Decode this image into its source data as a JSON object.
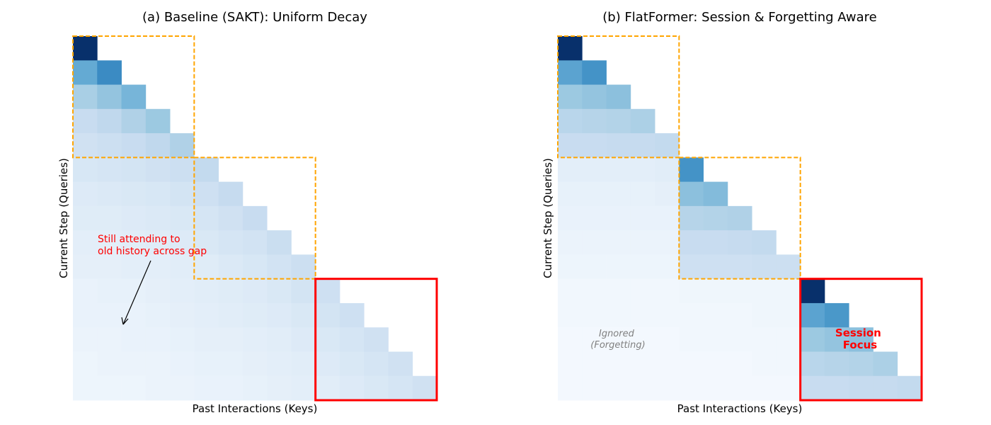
{
  "chart_data": [
    {
      "type": "heatmap",
      "title": "(a) Baseline (SAKT): Uniform Decay",
      "xlabel": "Past Interactions (Keys)",
      "ylabel": "Current Step (Queries)",
      "colormap": "Blues",
      "mask": "causal (upper triangle blank)",
      "grid": false,
      "session_boxes": [
        {
          "start": 0,
          "end": 5,
          "color": "#ffa500",
          "style": "dashed"
        },
        {
          "start": 5,
          "end": 10,
          "color": "#ffa500",
          "style": "dashed"
        },
        {
          "start": 10,
          "end": 15,
          "color": "#ff0000",
          "style": "solid"
        }
      ],
      "annotations": [
        {
          "text": "Still attending to\nold history across gap",
          "color": "#ff0000",
          "arrow": true
        }
      ],
      "values": [
        [
          1.0
        ],
        [
          0.52,
          0.65
        ],
        [
          0.34,
          0.4,
          0.47
        ],
        [
          0.24,
          0.27,
          0.32,
          0.38
        ],
        [
          0.2,
          0.22,
          0.24,
          0.27,
          0.32
        ],
        [
          0.16,
          0.17,
          0.18,
          0.2,
          0.22,
          0.26
        ],
        [
          0.13,
          0.14,
          0.15,
          0.16,
          0.18,
          0.21,
          0.25
        ],
        [
          0.12,
          0.12,
          0.13,
          0.14,
          0.15,
          0.17,
          0.2,
          0.24
        ],
        [
          0.1,
          0.1,
          0.11,
          0.12,
          0.13,
          0.15,
          0.17,
          0.19,
          0.23
        ],
        [
          0.09,
          0.09,
          0.1,
          0.1,
          0.11,
          0.12,
          0.14,
          0.16,
          0.19,
          0.22
        ],
        [
          0.07,
          0.08,
          0.08,
          0.09,
          0.1,
          0.11,
          0.12,
          0.13,
          0.15,
          0.18,
          0.21
        ],
        [
          0.07,
          0.07,
          0.07,
          0.08,
          0.09,
          0.1,
          0.11,
          0.12,
          0.13,
          0.15,
          0.18,
          0.21
        ],
        [
          0.06,
          0.06,
          0.07,
          0.07,
          0.08,
          0.09,
          0.09,
          0.1,
          0.11,
          0.13,
          0.15,
          0.17,
          0.2
        ],
        [
          0.05,
          0.06,
          0.06,
          0.06,
          0.07,
          0.08,
          0.08,
          0.09,
          0.1,
          0.11,
          0.13,
          0.15,
          0.17,
          0.2
        ],
        [
          0.05,
          0.05,
          0.05,
          0.06,
          0.06,
          0.07,
          0.07,
          0.08,
          0.09,
          0.1,
          0.11,
          0.13,
          0.15,
          0.17,
          0.2
        ]
      ]
    },
    {
      "type": "heatmap",
      "title": "(b) FlatFormer: Session & Forgetting Aware",
      "xlabel": "Past Interactions (Keys)",
      "ylabel": "Current Step (Queries)",
      "colormap": "Blues",
      "mask": "causal (upper triangle blank)",
      "grid": false,
      "session_boxes": [
        {
          "start": 0,
          "end": 5,
          "color": "#ffa500",
          "style": "dashed"
        },
        {
          "start": 5,
          "end": 10,
          "color": "#ffa500",
          "style": "dashed"
        },
        {
          "start": 10,
          "end": 15,
          "color": "#ff0000",
          "style": "solid"
        }
      ],
      "annotations": [
        {
          "text": "Ignored\n(Forgetting)",
          "color": "#808080",
          "style": "italic"
        },
        {
          "text": "Session\nFocus",
          "color": "#ff0000",
          "style": "bold"
        }
      ],
      "values": [
        [
          1.0
        ],
        [
          0.55,
          0.62
        ],
        [
          0.38,
          0.4,
          0.42
        ],
        [
          0.29,
          0.3,
          0.31,
          0.33
        ],
        [
          0.24,
          0.24,
          0.25,
          0.25,
          0.26
        ],
        [
          0.1,
          0.1,
          0.1,
          0.1,
          0.11,
          0.62
        ],
        [
          0.08,
          0.08,
          0.08,
          0.08,
          0.09,
          0.42,
          0.44
        ],
        [
          0.07,
          0.07,
          0.07,
          0.07,
          0.07,
          0.3,
          0.31,
          0.32
        ],
        [
          0.06,
          0.06,
          0.06,
          0.06,
          0.06,
          0.24,
          0.24,
          0.25,
          0.26
        ],
        [
          0.05,
          0.05,
          0.05,
          0.05,
          0.05,
          0.21,
          0.21,
          0.21,
          0.22,
          0.22
        ],
        [
          0.03,
          0.03,
          0.03,
          0.03,
          0.03,
          0.04,
          0.04,
          0.04,
          0.04,
          0.04,
          1.0
        ],
        [
          0.03,
          0.03,
          0.03,
          0.03,
          0.03,
          0.03,
          0.03,
          0.03,
          0.04,
          0.04,
          0.55,
          0.6
        ],
        [
          0.02,
          0.02,
          0.02,
          0.02,
          0.02,
          0.03,
          0.03,
          0.03,
          0.03,
          0.03,
          0.38,
          0.4,
          0.42
        ],
        [
          0.02,
          0.02,
          0.02,
          0.02,
          0.02,
          0.02,
          0.02,
          0.02,
          0.03,
          0.03,
          0.29,
          0.3,
          0.31,
          0.33
        ],
        [
          0.02,
          0.02,
          0.02,
          0.02,
          0.02,
          0.02,
          0.02,
          0.02,
          0.02,
          0.02,
          0.24,
          0.24,
          0.25,
          0.25,
          0.26
        ]
      ]
    }
  ]
}
